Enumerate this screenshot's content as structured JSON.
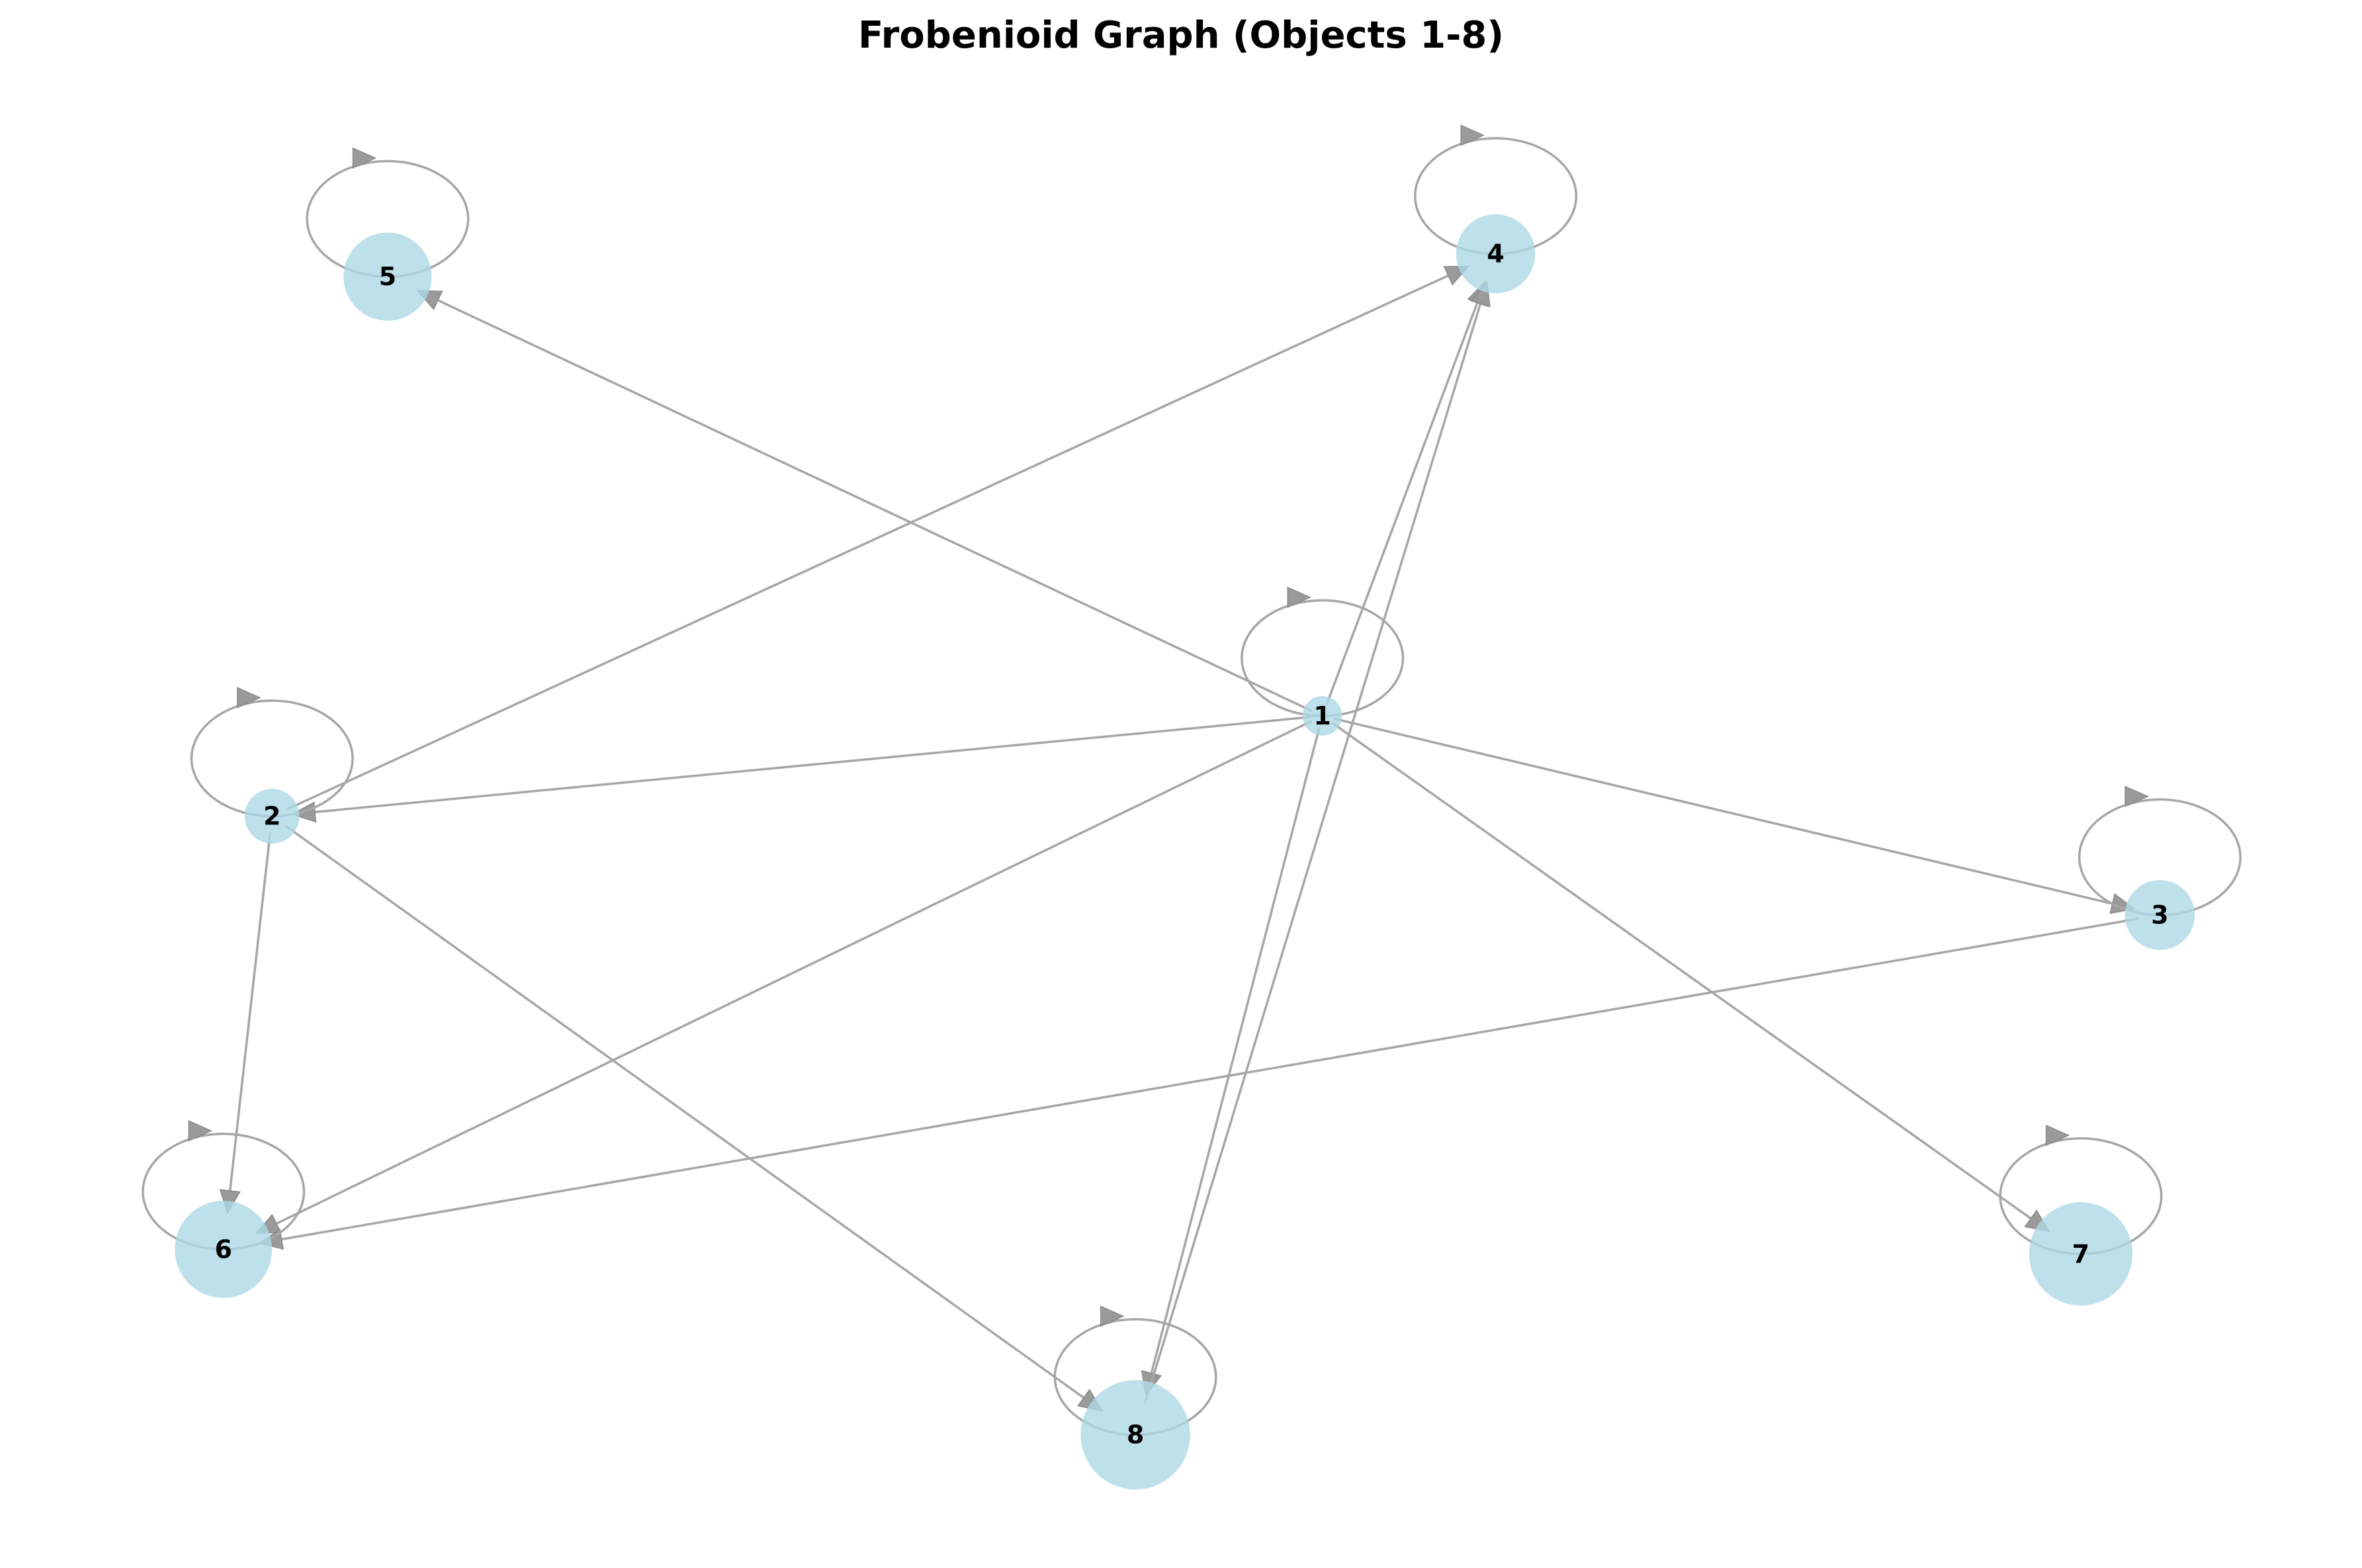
{
  "title": "Frobenioid Graph (Objects 1-8)",
  "colors": {
    "node": "#add8e6",
    "edge": "#a6a6a6",
    "arrow": "#9a9a9a",
    "text": "#000000"
  },
  "nodes": [
    {
      "id": "1",
      "label": "1",
      "size": 1
    },
    {
      "id": "2",
      "label": "2",
      "size": 2
    },
    {
      "id": "3",
      "label": "3",
      "size": 3
    },
    {
      "id": "4",
      "label": "4",
      "size": 4
    },
    {
      "id": "5",
      "label": "5",
      "size": 5
    },
    {
      "id": "6",
      "label": "6",
      "size": 6
    },
    {
      "id": "7",
      "label": "7",
      "size": 7
    },
    {
      "id": "8",
      "label": "8",
      "size": 8
    }
  ],
  "edges": [
    {
      "from": "1",
      "to": "1"
    },
    {
      "from": "1",
      "to": "2"
    },
    {
      "from": "1",
      "to": "3"
    },
    {
      "from": "1",
      "to": "4"
    },
    {
      "from": "1",
      "to": "5"
    },
    {
      "from": "1",
      "to": "6"
    },
    {
      "from": "1",
      "to": "7"
    },
    {
      "from": "1",
      "to": "8"
    },
    {
      "from": "2",
      "to": "2"
    },
    {
      "from": "2",
      "to": "4"
    },
    {
      "from": "2",
      "to": "6"
    },
    {
      "from": "2",
      "to": "8"
    },
    {
      "from": "3",
      "to": "3"
    },
    {
      "from": "3",
      "to": "6"
    },
    {
      "from": "4",
      "to": "4"
    },
    {
      "from": "5",
      "to": "5"
    },
    {
      "from": "6",
      "to": "6"
    },
    {
      "from": "7",
      "to": "7"
    },
    {
      "from": "8",
      "to": "8"
    },
    {
      "from": "8",
      "to": "4"
    }
  ]
}
